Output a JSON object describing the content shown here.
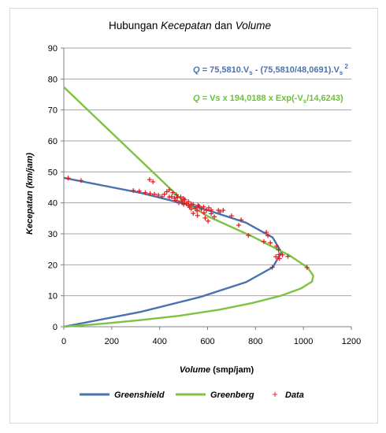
{
  "chart_data": {
    "type": "line",
    "title": {
      "part1": "Hubungan ",
      "part2": "Kecepatan",
      "part3": " dan ",
      "part4": "Volume"
    },
    "xlabel": {
      "italic": "Volume",
      "normal": " (smp/jam)"
    },
    "ylabel": "Kecepatan (km/jam)",
    "xlim": [
      0,
      1200
    ],
    "ylim": [
      0,
      90
    ],
    "xticks": [
      0,
      200,
      400,
      600,
      800,
      1000,
      1200
    ],
    "yticks": [
      0,
      10,
      20,
      30,
      40,
      50,
      60,
      70,
      80,
      90
    ],
    "grid": "horizontal",
    "legend_position": "bottom",
    "equations": [
      {
        "color": "#4a72b0",
        "q": "Q",
        "body": " = 75,5810.V",
        "sub1": "s",
        "mid": " - (75,5810/48,0691).V",
        "sub2": "s",
        "sup": " 2"
      },
      {
        "color": "#6dbf3d",
        "q": "Q",
        "body": " = Vs x 194,0188  x Exp(-V",
        "sub1": "s",
        "tail": "/14,6243)"
      }
    ],
    "series": [
      {
        "name": "Greenshield",
        "color": "#4a72b0",
        "points": [
          [
            0,
            0
          ],
          [
            322,
            4.8
          ],
          [
            570,
            9.6
          ],
          [
            760,
            14.4
          ],
          [
            872,
            19.2
          ],
          [
            908,
            24
          ],
          [
            872,
            28.8
          ],
          [
            760,
            33.6
          ],
          [
            570,
            38.4
          ],
          [
            322,
            43.2
          ],
          [
            0,
            48.07
          ]
        ]
      },
      {
        "name": "Greenberg",
        "color": "#7ec242",
        "points": [
          [
            0,
            0
          ],
          [
            134,
            0.8
          ],
          [
            305,
            2
          ],
          [
            480,
            3.5
          ],
          [
            648,
            5.5
          ],
          [
            784,
            7.6
          ],
          [
            905,
            10
          ],
          [
            991,
            12.4
          ],
          [
            1036,
            14.6
          ],
          [
            1041,
            16.5
          ],
          [
            1017,
            19.2
          ],
          [
            942,
            23
          ],
          [
            785,
            29.2
          ],
          [
            603,
            35.6
          ],
          [
            502,
            40.3
          ],
          [
            0,
            77.4
          ]
        ]
      },
      {
        "name": "Data",
        "color": "#e3161c",
        "points": [
          [
            18,
            48
          ],
          [
            72,
            47.2
          ],
          [
            358,
            47.5
          ],
          [
            372,
            46.8
          ],
          [
            290,
            44
          ],
          [
            315,
            43.8
          ],
          [
            340,
            43.3
          ],
          [
            360,
            43
          ],
          [
            378,
            42.8
          ],
          [
            395,
            42.5
          ],
          [
            410,
            42
          ],
          [
            420,
            42.8
          ],
          [
            430,
            43.6
          ],
          [
            440,
            44.2
          ],
          [
            450,
            42
          ],
          [
            462,
            41.5
          ],
          [
            468,
            40.8
          ],
          [
            475,
            41.8
          ],
          [
            480,
            40
          ],
          [
            490,
            40.6
          ],
          [
            500,
            39.5
          ],
          [
            505,
            41
          ],
          [
            512,
            39.8
          ],
          [
            520,
            39.1
          ],
          [
            525,
            38.6
          ],
          [
            532,
            38
          ],
          [
            540,
            39.5
          ],
          [
            548,
            38.3
          ],
          [
            556,
            37.4
          ],
          [
            565,
            38.9
          ],
          [
            574,
            37.9
          ],
          [
            585,
            36.8
          ],
          [
            595,
            37.6
          ],
          [
            605,
            38.4
          ],
          [
            615,
            36.5
          ],
          [
            628,
            35.5
          ],
          [
            645,
            37.6
          ],
          [
            665,
            37.6
          ],
          [
            700,
            35.8
          ],
          [
            740,
            34.5
          ],
          [
            730,
            32.8
          ],
          [
            770,
            29.5
          ],
          [
            845,
            30.5
          ],
          [
            852,
            29.4
          ],
          [
            862,
            27.1
          ],
          [
            888,
            26
          ],
          [
            896,
            24.8
          ],
          [
            898,
            23.3
          ],
          [
            885,
            22.6
          ],
          [
            900,
            22
          ],
          [
            912,
            23.2
          ],
          [
            935,
            22.7
          ],
          [
            1015,
            19.1
          ],
          [
            870,
            19.2
          ],
          [
            440,
            41.9
          ],
          [
            455,
            43.3
          ],
          [
            495,
            40.1
          ],
          [
            532,
            39.6
          ],
          [
            560,
            39.2
          ],
          [
            583,
            38.7
          ],
          [
            615,
            37.7
          ],
          [
            652,
            37.1
          ],
          [
            500,
            41.4
          ],
          [
            520,
            40.4
          ],
          [
            488,
            41.9
          ],
          [
            470,
            42.6
          ],
          [
            540,
            36.6
          ],
          [
            558,
            35.9
          ],
          [
            590,
            35.1
          ],
          [
            602,
            34.1
          ],
          [
            835,
            27.5
          ]
        ]
      }
    ]
  }
}
